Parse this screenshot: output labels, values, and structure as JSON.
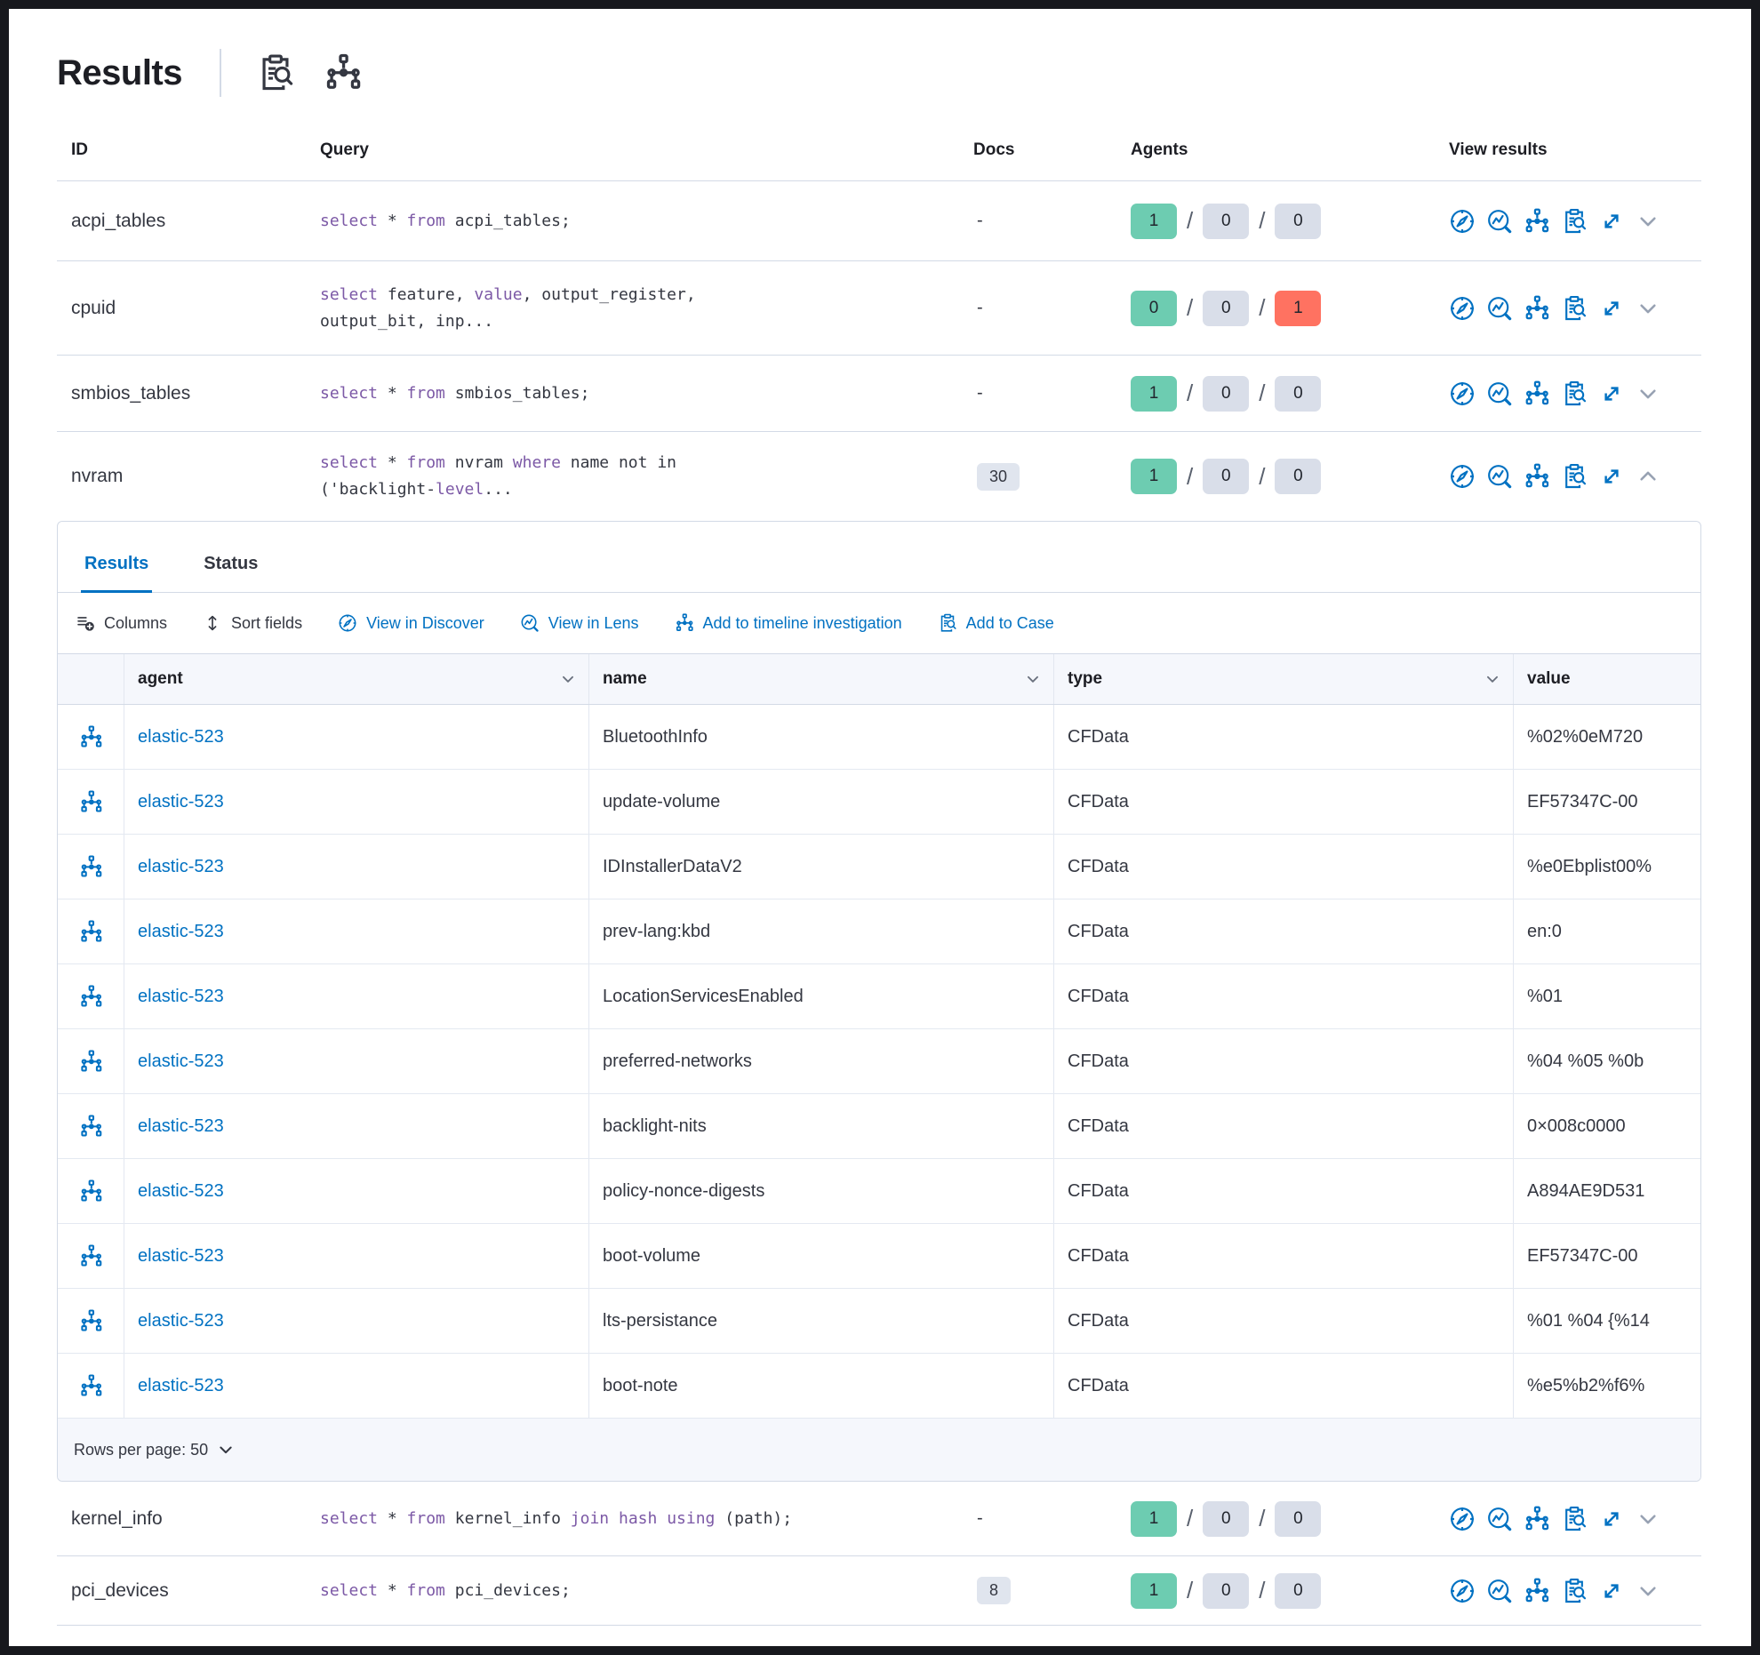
{
  "page": {
    "title": "Results",
    "header_icons": [
      "saved-query",
      "pack"
    ]
  },
  "colors": {
    "link_blue": "#0071C2",
    "badge_green": "#6DCCB1",
    "badge_grey": "#D9DEE9",
    "badge_red": "#FF7261",
    "keyword_purple": "#7C59A6",
    "text_dark": "#343741"
  },
  "results_table": {
    "columns": {
      "id": "ID",
      "query": "Query",
      "docs": "Docs",
      "agents": "Agents",
      "view_results": "View results"
    },
    "action_icons": [
      "discover",
      "lens",
      "timeline",
      "case",
      "expand"
    ],
    "rows": [
      {
        "id": "acpi_tables",
        "docs": "-",
        "docs_badge": false,
        "expanded": false,
        "agents": [
          {
            "value": "1",
            "color": "green"
          },
          {
            "value": "0",
            "color": "grey"
          },
          {
            "value": "0",
            "color": "grey"
          }
        ],
        "query": [
          [
            {
              "t": "select",
              "k": true
            },
            {
              "t": " * "
            },
            {
              "t": "from",
              "k": true
            },
            {
              "t": " acpi_tables;"
            }
          ]
        ]
      },
      {
        "id": "cpuid",
        "docs": "-",
        "docs_badge": false,
        "expanded": false,
        "agents": [
          {
            "value": "0",
            "color": "green"
          },
          {
            "value": "0",
            "color": "grey"
          },
          {
            "value": "1",
            "color": "red"
          }
        ],
        "query": [
          [
            {
              "t": "select",
              "k": true
            },
            {
              "t": " feature, "
            },
            {
              "t": "value",
              "k": true
            },
            {
              "t": ", output_register,"
            }
          ],
          [
            {
              "t": "output_bit, inp..."
            }
          ]
        ]
      },
      {
        "id": "smbios_tables",
        "docs": "-",
        "docs_badge": false,
        "expanded": false,
        "agents": [
          {
            "value": "1",
            "color": "green"
          },
          {
            "value": "0",
            "color": "grey"
          },
          {
            "value": "0",
            "color": "grey"
          }
        ],
        "query": [
          [
            {
              "t": "select",
              "k": true
            },
            {
              "t": " * "
            },
            {
              "t": "from",
              "k": true
            },
            {
              "t": " smbios_tables;"
            }
          ]
        ]
      },
      {
        "id": "nvram",
        "docs": "30",
        "docs_badge": true,
        "expanded": true,
        "agents": [
          {
            "value": "1",
            "color": "green"
          },
          {
            "value": "0",
            "color": "grey"
          },
          {
            "value": "0",
            "color": "grey"
          }
        ],
        "query": [
          [
            {
              "t": "select",
              "k": true
            },
            {
              "t": " * "
            },
            {
              "t": "from",
              "k": true
            },
            {
              "t": " nvram "
            },
            {
              "t": "where",
              "k": true
            },
            {
              "t": " name not in"
            }
          ],
          [
            {
              "t": "('backlight-"
            },
            {
              "t": "level",
              "k": true
            },
            {
              "t": "..."
            }
          ]
        ]
      },
      {
        "id": "kernel_info",
        "docs": "-",
        "docs_badge": false,
        "expanded": false,
        "agents": [
          {
            "value": "1",
            "color": "green"
          },
          {
            "value": "0",
            "color": "grey"
          },
          {
            "value": "0",
            "color": "grey"
          }
        ],
        "query": [
          [
            {
              "t": "select",
              "k": true
            },
            {
              "t": " * "
            },
            {
              "t": "from",
              "k": true
            },
            {
              "t": " kernel_info "
            },
            {
              "t": "join",
              "k": true
            },
            {
              "t": " "
            },
            {
              "t": "hash",
              "k": true
            },
            {
              "t": " "
            },
            {
              "t": "using",
              "k": true
            },
            {
              "t": " (path);"
            }
          ]
        ]
      },
      {
        "id": "pci_devices",
        "docs": "8",
        "docs_badge": true,
        "expanded": false,
        "agents": [
          {
            "value": "1",
            "color": "green"
          },
          {
            "value": "0",
            "color": "grey"
          },
          {
            "value": "0",
            "color": "grey"
          }
        ],
        "query": [
          [
            {
              "t": "select",
              "k": true
            },
            {
              "t": " * "
            },
            {
              "t": "from",
              "k": true
            },
            {
              "t": " pci_devices;"
            }
          ]
        ]
      }
    ]
  },
  "results_panel": {
    "tabs": [
      {
        "label": "Results",
        "active": true
      },
      {
        "label": "Status",
        "active": false
      }
    ],
    "toolbar": [
      {
        "label": "Columns",
        "icon": "columns",
        "style": "plain"
      },
      {
        "label": "Sort fields",
        "icon": "sort",
        "style": "plain"
      },
      {
        "label": "View in Discover",
        "icon": "discover",
        "style": "link"
      },
      {
        "label": "View in Lens",
        "icon": "lens",
        "style": "link"
      },
      {
        "label": "Add to timeline investigation",
        "icon": "timeline",
        "style": "link"
      },
      {
        "label": "Add to Case",
        "icon": "case",
        "style": "link"
      }
    ],
    "grid": {
      "columns": [
        {
          "label": "agent",
          "sortable": true
        },
        {
          "label": "name",
          "sortable": true
        },
        {
          "label": "type",
          "sortable": true
        },
        {
          "label": "value",
          "sortable": false
        }
      ],
      "rows": [
        {
          "agent": "elastic-523",
          "name": "BluetoothInfo",
          "type": "CFData",
          "value": "%02%0eM720"
        },
        {
          "agent": "elastic-523",
          "name": "update-volume",
          "type": "CFData",
          "value": "EF57347C-00"
        },
        {
          "agent": "elastic-523",
          "name": "IDInstallerDataV2",
          "type": "CFData",
          "value": "%e0Ebplist00%"
        },
        {
          "agent": "elastic-523",
          "name": "prev-lang:kbd",
          "type": "CFData",
          "value": "en:0"
        },
        {
          "agent": "elastic-523",
          "name": "LocationServicesEnabled",
          "type": "CFData",
          "value": "%01"
        },
        {
          "agent": "elastic-523",
          "name": "preferred-networks",
          "type": "CFData",
          "value": "%04 %05 %0b"
        },
        {
          "agent": "elastic-523",
          "name": "backlight-nits",
          "type": "CFData",
          "value": "0×008c0000"
        },
        {
          "agent": "elastic-523",
          "name": "policy-nonce-digests",
          "type": "CFData",
          "value": "A894AE9D531"
        },
        {
          "agent": "elastic-523",
          "name": "boot-volume",
          "type": "CFData",
          "value": "EF57347C-00"
        },
        {
          "agent": "elastic-523",
          "name": "lts-persistance",
          "type": "CFData",
          "value": "%01 %04 {%14"
        },
        {
          "agent": "elastic-523",
          "name": "boot-note",
          "type": "CFData",
          "value": "%e5%b2%f6%"
        }
      ],
      "footer": {
        "rows_per_page_label": "Rows per page: 50"
      }
    }
  }
}
